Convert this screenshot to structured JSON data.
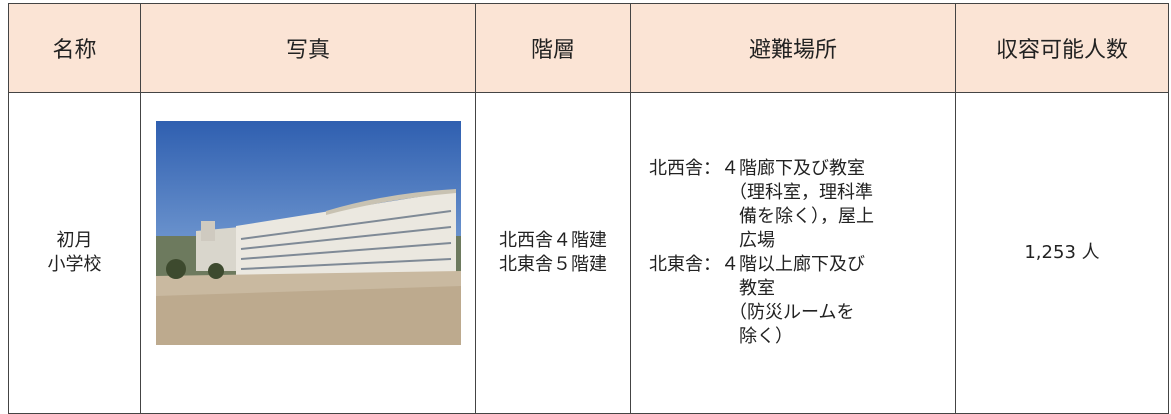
{
  "table": {
    "headers": [
      "名称",
      "写真",
      "階層",
      "避難場所",
      "収容可能人数"
    ],
    "rows": [
      [
        [
          "初月",
          "小学校"
        ],
        null,
        [
          "北西舎４階建",
          "北東舎５階建"
        ],
        [
          "北西舎：４階廊下及び教室",
          "（理科室，理科準",
          "備を除く），屋上",
          "広場",
          "北東舎：４階以上廊下及び",
          "教室",
          "（防災ルームを",
          "除く）"
        ],
        "1,253 人"
      ]
    ]
  }
}
